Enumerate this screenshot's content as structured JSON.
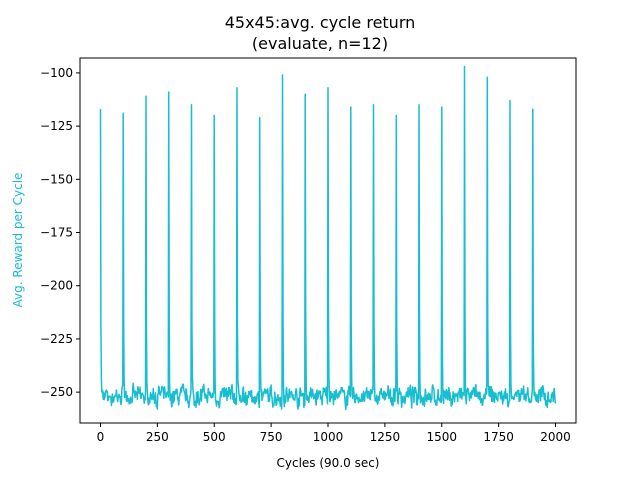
{
  "chart_data": {
    "type": "line",
    "title": "45x45:avg. cycle return",
    "subtitle": "(evaluate, n=12)",
    "xlabel": "Cycles (90.0 sec)",
    "ylabel": "Avg. Reward per Cycle",
    "xlim": [
      -90,
      2090
    ],
    "ylim": [
      -264.5,
      -93
    ],
    "xticks": [
      0,
      250,
      500,
      750,
      1000,
      1250,
      1500,
      1750,
      2000
    ],
    "yticks": [
      -250,
      -225,
      -200,
      -175,
      -150,
      -125,
      -100
    ],
    "grid": false,
    "legend": "none",
    "series": [
      {
        "color": "#17becf",
        "baseline": -252,
        "x_end": 2000,
        "spikes": [
          {
            "x": 0,
            "y": -117
          },
          {
            "x": 100,
            "y": -119
          },
          {
            "x": 200,
            "y": -111
          },
          {
            "x": 300,
            "y": -109
          },
          {
            "x": 400,
            "y": -115
          },
          {
            "x": 500,
            "y": -120
          },
          {
            "x": 600,
            "y": -107
          },
          {
            "x": 700,
            "y": -121
          },
          {
            "x": 800,
            "y": -101
          },
          {
            "x": 900,
            "y": -110
          },
          {
            "x": 1000,
            "y": -107
          },
          {
            "x": 1100,
            "y": -116
          },
          {
            "x": 1200,
            "y": -115
          },
          {
            "x": 1300,
            "y": -120
          },
          {
            "x": 1400,
            "y": -115
          },
          {
            "x": 1500,
            "y": -116
          },
          {
            "x": 1600,
            "y": -97
          },
          {
            "x": 1700,
            "y": -102
          },
          {
            "x": 1800,
            "y": -113
          },
          {
            "x": 1900,
            "y": -117
          }
        ]
      }
    ]
  }
}
